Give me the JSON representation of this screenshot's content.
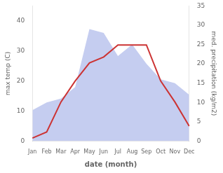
{
  "chart_data": {
    "type": "line",
    "xlabel": "date (month)",
    "ylabel": "max temp (C)",
    "y2label": "med. precipitation (kg/m2)",
    "categories": [
      "Jan",
      "Feb",
      "Mar",
      "Apr",
      "May",
      "Jun",
      "Jul",
      "Aug",
      "Sep",
      "Oct",
      "Nov",
      "Dec"
    ],
    "series": [
      {
        "type": "area",
        "axis": "y2",
        "color": "#c5cdf0",
        "values": [
          8,
          10,
          11,
          14,
          29,
          28,
          22,
          25,
          20,
          16,
          15,
          12
        ]
      },
      {
        "type": "line",
        "color": "#cc3333",
        "values": [
          1,
          3,
          13,
          20,
          26,
          28,
          32,
          32,
          32,
          20,
          13,
          5
        ]
      }
    ],
    "ylim": [
      0,
      45
    ],
    "yticks": [
      0,
      10,
      20,
      30,
      40
    ],
    "y2lim": [
      0,
      35
    ],
    "y2ticks": [
      0,
      5,
      10,
      15,
      20,
      25,
      30,
      35
    ],
    "grid": false
  }
}
